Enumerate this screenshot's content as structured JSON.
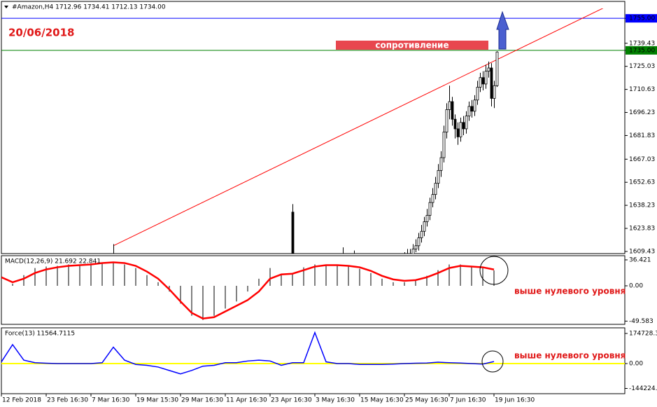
{
  "header": "#Amazon,H4  1712.96 1734.41 1712.13 1734.00",
  "date_label": "20/06/2018",
  "annotations": {
    "resistance": "сопротивление",
    "macd_note": "выше нулевого уровня",
    "force_note": "выше нулевого уровня"
  },
  "chart_data": [
    {
      "type": "candlestick",
      "xlim": [
        0,
        222.75
      ],
      "ylim": [
        1608.1,
        1761.2
      ],
      "yticks": [
        {
          "value": 1755,
          "label": "1755.00"
        },
        1739.43,
        {
          "value": 1735,
          "label": "1735.00"
        },
        1725.03,
        1710.63,
        1696.23,
        1681.83,
        1667.03,
        1652.63,
        1638.23,
        1623.83,
        1609.43
      ],
      "x": [
        40,
        104,
        122,
        126,
        144,
        145,
        146,
        147,
        148,
        149,
        150,
        151,
        152,
        153,
        154,
        155,
        156,
        157,
        158,
        159,
        160,
        161,
        162,
        163,
        164,
        165,
        166,
        167,
        168,
        169,
        170,
        171,
        172,
        173,
        174,
        175,
        176,
        177
      ],
      "open": [
        1600,
        1634,
        1604,
        1603,
        1604,
        1606,
        1608,
        1607,
        1611,
        1613,
        1618,
        1622,
        1628,
        1632,
        1640,
        1645,
        1652,
        1660,
        1668,
        1684,
        1698,
        1703,
        1692,
        1686,
        1681,
        1690,
        1686,
        1694,
        1700,
        1697,
        1704,
        1712,
        1718,
        1714,
        1722,
        1724,
        1705,
        1712.96
      ],
      "high": [
        1614,
        1639,
        1612,
        1610,
        1609,
        1611,
        1611,
        1614,
        1617,
        1621,
        1626,
        1631,
        1636,
        1643,
        1649,
        1656,
        1664,
        1672,
        1688,
        1702,
        1713,
        1706,
        1695,
        1690,
        1693,
        1694,
        1697,
        1703,
        1704,
        1707,
        1716,
        1721,
        1722,
        1726,
        1728,
        1727,
        1716,
        1734.41
      ],
      "low": [
        1590,
        1595,
        1598,
        1598,
        1601,
        1603,
        1604,
        1605,
        1609,
        1610,
        1615,
        1619,
        1625,
        1629,
        1637,
        1642,
        1649,
        1656,
        1665,
        1680,
        1692,
        1688,
        1680,
        1676,
        1678,
        1682,
        1683,
        1691,
        1693,
        1694,
        1701,
        1709,
        1710,
        1711,
        1718,
        1700,
        1699,
        1712.13
      ],
      "close": [
        1606,
        1600,
        1606,
        1607,
        1606,
        1608,
        1607,
        1611,
        1613,
        1618,
        1622,
        1628,
        1632,
        1640,
        1645,
        1652,
        1660,
        1668,
        1684,
        1698,
        1703,
        1692,
        1686,
        1681,
        1690,
        1686,
        1694,
        1700,
        1697,
        1704,
        1712,
        1718,
        1714,
        1722,
        1724,
        1705,
        1712.96,
        1734
      ],
      "levels": [
        {
          "value": 1755,
          "color": "#0000ff"
        },
        {
          "value": 1735,
          "color": "#008000"
        }
      ],
      "trendlines": [
        {
          "color": "#ff0000",
          "x": [
            40,
            220
          ],
          "y": [
            1613,
            1765.6
          ]
        },
        {
          "color": "#ffffff",
          "x": [
            154,
            176
          ],
          "y": [
            1608.6,
            1700.8
          ]
        }
      ]
    },
    {
      "type": "macd",
      "title": "MACD(12,26,9) 21.692 22.841",
      "xlim": [
        0,
        222.75
      ],
      "ylim": [
        -54.1,
        42.3
      ],
      "yticks": [
        36.421,
        {
          "value": 0,
          "label": "0.00"
        },
        -49.583
      ],
      "x": [
        0,
        4,
        8,
        12,
        16,
        20,
        24,
        28,
        32,
        36,
        40,
        44,
        48,
        52,
        56,
        60,
        64,
        68,
        72,
        76,
        80,
        84,
        88,
        92,
        96,
        100,
        104,
        108,
        112,
        116,
        120,
        124,
        128,
        132,
        136,
        140,
        144,
        148,
        152,
        156,
        160,
        164,
        168,
        172,
        176
      ],
      "histogram": {
        "color": "#000000",
        "values": [
          8,
          3,
          15,
          25,
          27,
          28,
          30,
          30,
          31,
          33,
          33,
          30,
          25,
          15,
          5,
          -8,
          -25,
          -42,
          -48,
          -42,
          -32,
          -22,
          -8,
          10,
          25,
          15,
          18,
          26,
          30,
          30,
          29,
          28,
          24,
          18,
          10,
          5,
          5,
          8,
          14,
          22,
          30,
          30,
          27,
          25,
          21.692
        ]
      },
      "signal": {
        "color": "#ff0000",
        "values": [
          12,
          5,
          10,
          18,
          23,
          26,
          28,
          29,
          30,
          32,
          33,
          32,
          28,
          20,
          10,
          -5,
          -22,
          -38,
          -46,
          -44,
          -36,
          -28,
          -20,
          -8,
          10,
          16,
          17,
          22,
          27,
          29,
          29,
          28,
          26,
          21,
          14,
          9,
          7,
          8,
          12,
          18,
          25,
          28,
          27,
          26,
          22.841
        ]
      }
    },
    {
      "type": "force",
      "title": "Force(13) 11564.7115",
      "xlim": [
        0,
        222.75
      ],
      "ylim": [
        -174709,
        207233
      ],
      "yticks": [
        174728.3,
        {
          "value": 0,
          "label": "0.00"
        },
        -144224.8
      ],
      "color": "#0000ff",
      "zero_color": "#ffff00",
      "x": [
        0,
        4,
        8,
        12,
        16,
        20,
        24,
        28,
        32,
        36,
        40,
        44,
        48,
        52,
        56,
        60,
        64,
        68,
        72,
        76,
        80,
        84,
        88,
        92,
        96,
        100,
        104,
        108,
        112,
        116,
        120,
        124,
        128,
        132,
        136,
        140,
        144,
        148,
        152,
        156,
        160,
        164,
        168,
        172,
        176
      ],
      "values": [
        10000,
        110000,
        20000,
        5000,
        2000,
        0,
        0,
        0,
        0,
        5000,
        95000,
        20000,
        -5000,
        -10000,
        -20000,
        -40000,
        -60000,
        -40000,
        -15000,
        -10000,
        5000,
        5000,
        15000,
        20000,
        15000,
        -10000,
        5000,
        5000,
        180000,
        10000,
        0,
        0,
        -5000,
        -5000,
        -5000,
        -3000,
        0,
        2000,
        3000,
        8000,
        5000,
        3000,
        0,
        -3000,
        11564.7115
      ],
      "xticks": [
        {
          "value": 0,
          "label": "12 Feb 2018"
        },
        {
          "value": 16,
          "label": "23 Feb 16:30"
        },
        {
          "value": 32,
          "label": "7 Mar 16:30"
        },
        {
          "value": 48,
          "label": "19 Mar 15:30"
        },
        {
          "value": 64,
          "label": "29 Mar 16:30"
        },
        {
          "value": 80,
          "label": "11 Apr 16:30"
        },
        {
          "value": 96,
          "label": "23 Apr 16:30"
        },
        {
          "value": 112,
          "label": "3 May 16:30"
        },
        {
          "value": 128,
          "label": "15 May 16:30"
        },
        {
          "value": 144,
          "label": "25 May 16:30"
        },
        {
          "value": 160,
          "label": "7 Jun 16:30"
        },
        {
          "value": 176,
          "label": "19 Jun 16:30"
        }
      ]
    }
  ]
}
